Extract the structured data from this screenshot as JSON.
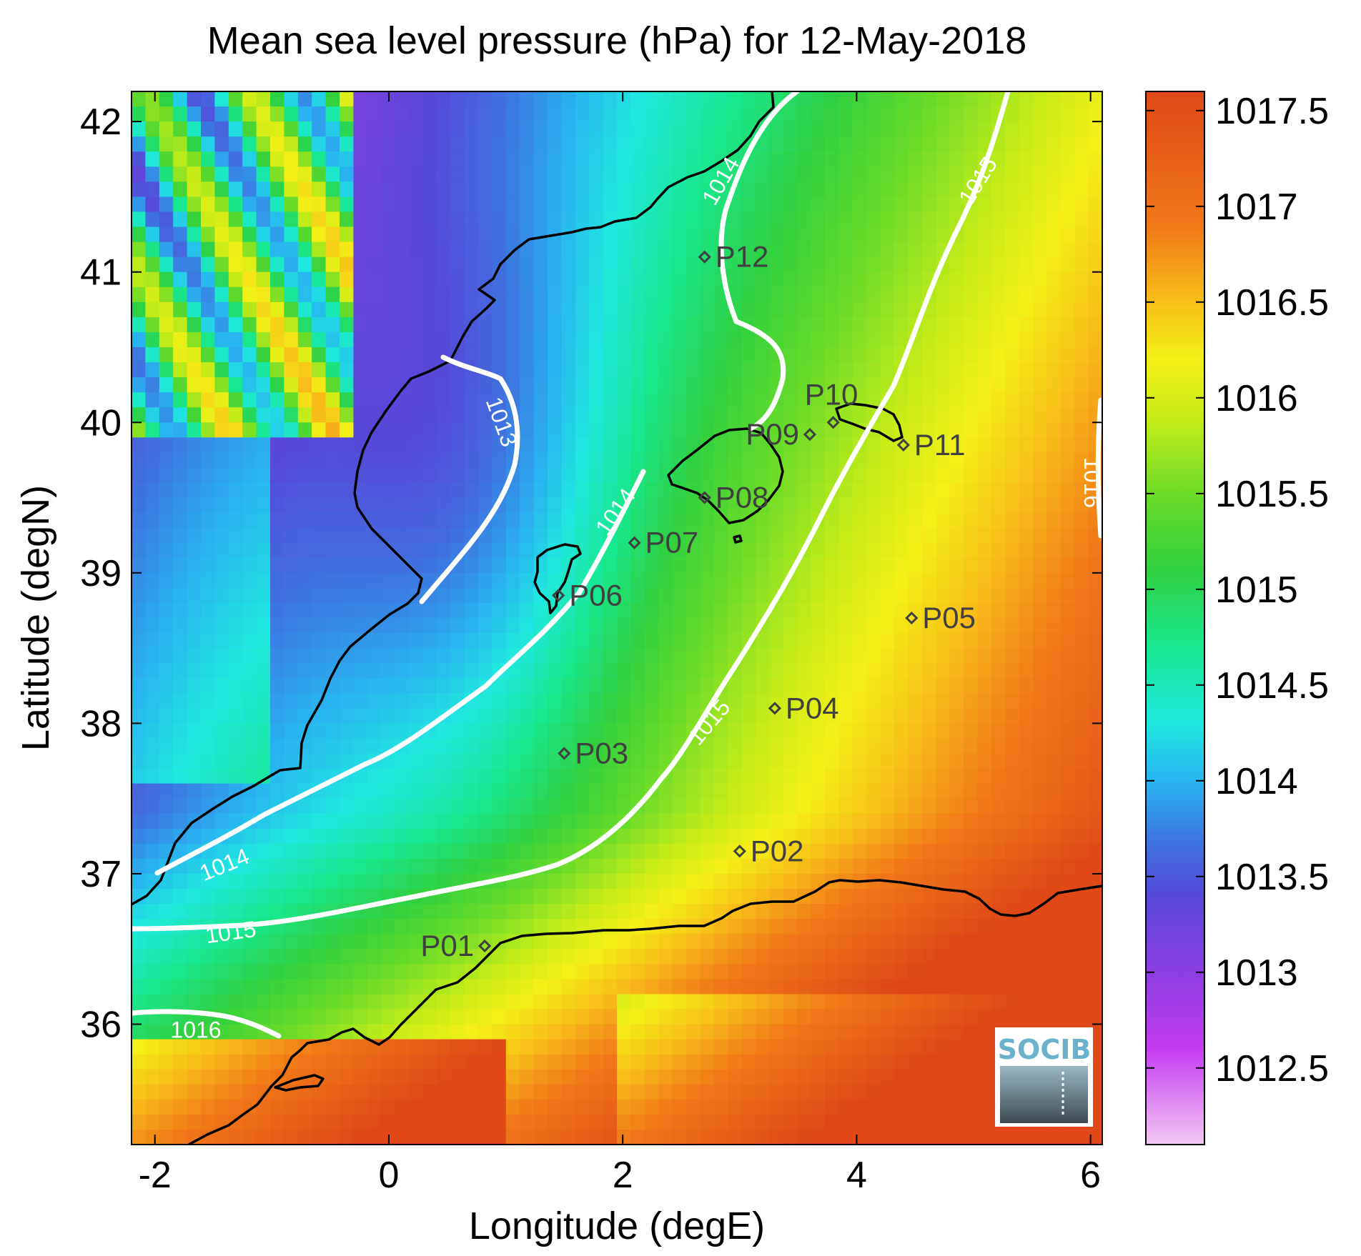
{
  "title": "Mean sea level pressure (hPa) for 12-May-2018",
  "xlabel": "Longitude (degE)",
  "ylabel": "Latitude (degN)",
  "logo_text": "SOCIB",
  "chart_data": {
    "type": "heatmap",
    "title": "Mean sea level pressure (hPa) for 12-May-2018",
    "xlabel": "Longitude (degE)",
    "ylabel": "Latitude (degN)",
    "xlim": [
      -2.2,
      6.1
    ],
    "ylim": [
      35.2,
      42.2
    ],
    "x_ticks": [
      -2,
      0,
      2,
      4,
      6
    ],
    "x_tick_labels": [
      "-2",
      "0",
      "2",
      "4",
      "6"
    ],
    "y_ticks": [
      36,
      37,
      38,
      39,
      40,
      41,
      42
    ],
    "y_tick_labels": [
      "36",
      "37",
      "38",
      "39",
      "40",
      "41",
      "42"
    ],
    "colorbar": {
      "range": [
        1012.1,
        1017.6
      ],
      "ticks": [
        1012.5,
        1013,
        1013.5,
        1014,
        1014.5,
        1015,
        1015.5,
        1016,
        1016.5,
        1017,
        1017.5
      ],
      "tick_labels": [
        "1012.5",
        "1013",
        "1013.5",
        "1014",
        "1014.5",
        "1015",
        "1015.5",
        "1016",
        "1016.5",
        "1017",
        "1017.5"
      ],
      "colors": [
        {
          "value": 1012.1,
          "color": "#f4c8f4"
        },
        {
          "value": 1012.6,
          "color": "#c43cf0"
        },
        {
          "value": 1013.0,
          "color": "#8c3ee0"
        },
        {
          "value": 1013.4,
          "color": "#5648d8"
        },
        {
          "value": 1013.7,
          "color": "#3c78e0"
        },
        {
          "value": 1014.0,
          "color": "#28b4f0"
        },
        {
          "value": 1014.3,
          "color": "#20e8e0"
        },
        {
          "value": 1014.7,
          "color": "#18e890"
        },
        {
          "value": 1015.1,
          "color": "#30d040"
        },
        {
          "value": 1015.5,
          "color": "#6cdc28"
        },
        {
          "value": 1015.9,
          "color": "#c8ec18"
        },
        {
          "value": 1016.2,
          "color": "#f4f018"
        },
        {
          "value": 1016.5,
          "color": "#f8c018"
        },
        {
          "value": 1016.9,
          "color": "#f07818"
        },
        {
          "value": 1017.6,
          "color": "#e04818"
        }
      ]
    },
    "contour_levels": [
      1013,
      1014,
      1015,
      1016
    ],
    "contour_labels": [
      {
        "text": "1013",
        "lon": 0.95,
        "lat": 40.0,
        "angle": 70
      },
      {
        "text": "1014",
        "lon": 2.85,
        "lat": 41.6,
        "angle": -60
      },
      {
        "text": "1014",
        "lon": 1.95,
        "lat": 39.4,
        "angle": -55
      },
      {
        "text": "1014",
        "lon": -1.4,
        "lat": 37.05,
        "angle": -22
      },
      {
        "text": "1015",
        "lon": 5.05,
        "lat": 41.6,
        "angle": -58
      },
      {
        "text": "1015",
        "lon": 2.75,
        "lat": 38.0,
        "angle": -50
      },
      {
        "text": "1015",
        "lon": -1.35,
        "lat": 36.6,
        "angle": -8
      },
      {
        "text": "1016",
        "lon": -1.65,
        "lat": 35.95,
        "angle": 0
      },
      {
        "text": "1016",
        "lon": 6.0,
        "lat": 39.6,
        "angle": 90
      }
    ],
    "stations": [
      {
        "name": "P01",
        "lon": 0.82,
        "lat": 36.52
      },
      {
        "name": "P02",
        "lon": 3.0,
        "lat": 37.15
      },
      {
        "name": "P03",
        "lon": 1.5,
        "lat": 37.8
      },
      {
        "name": "P04",
        "lon": 3.3,
        "lat": 38.1
      },
      {
        "name": "P05",
        "lon": 4.47,
        "lat": 38.7
      },
      {
        "name": "P06",
        "lon": 1.45,
        "lat": 38.85
      },
      {
        "name": "P07",
        "lon": 2.1,
        "lat": 39.2
      },
      {
        "name": "P08",
        "lon": 2.7,
        "lat": 39.5
      },
      {
        "name": "P09",
        "lon": 3.6,
        "lat": 39.92
      },
      {
        "name": "P10",
        "lon": 3.8,
        "lat": 40.0
      },
      {
        "name": "P11",
        "lon": 4.4,
        "lat": 39.85
      },
      {
        "name": "P12",
        "lon": 2.7,
        "lat": 41.1
      }
    ]
  }
}
